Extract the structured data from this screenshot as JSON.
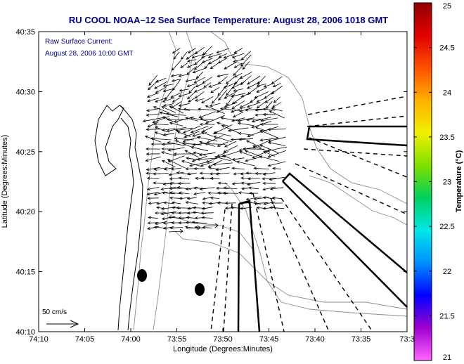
{
  "chart_data": {
    "type": "vector-field",
    "title": "RU COOL  NOAA–12  Sea Surface Temperature:  August 28, 2006 1018 GMT",
    "subtitle_lines": [
      "Raw Surface Current:",
      "August 28, 2006 10:00 GMT"
    ],
    "xlabel": "Longitude (Degrees:Minutes)",
    "ylabel": "Latitude (Degrees:Minutes)",
    "x_ticks": [
      "74:10",
      "74:05",
      "74:00",
      "73:55",
      "73:50",
      "73:45",
      "73:40",
      "73:35",
      "73:3"
    ],
    "y_ticks": [
      "40:35",
      "40:30",
      "40:25",
      "40:20",
      "40:15",
      "40:10"
    ],
    "xlim": [
      -74.1667,
      -73.5
    ],
    "ylim": [
      40.1667,
      40.5833
    ],
    "scale_label": "50 cm/s",
    "colorbar": {
      "label": "Temperature (°C)",
      "ticks": [
        "25",
        "24.5",
        "24",
        "23.5",
        "23",
        "22.5",
        "22",
        "21.5",
        "21"
      ],
      "range": [
        21,
        25
      ],
      "colors": [
        "#ff66ff",
        "#a000d0",
        "#0000ff",
        "#0090ff",
        "#00e8e8",
        "#00d060",
        "#80e000",
        "#f0f000",
        "#ffb000",
        "#ff5000",
        "#e00000",
        "#900000"
      ]
    },
    "current_field": {
      "region_lon": [
        -73.93,
        -73.74
      ],
      "region_lat": [
        40.33,
        40.54
      ],
      "dominant_direction": "west-southwest",
      "max_speed_cm_s": 60
    },
    "colors": {
      "title": "#00008b",
      "axes": "#000000",
      "land": "#ffffff"
    }
  }
}
